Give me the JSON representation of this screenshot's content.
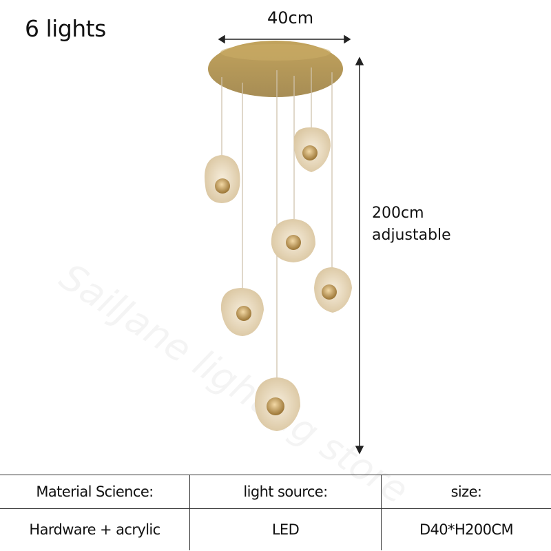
{
  "title": "6 lights",
  "dimensions": {
    "width": "40cm",
    "height_line1": "200cm",
    "height_line2": "adjustable"
  },
  "watermark": "SailJane lighting store",
  "colors": {
    "gold": "#b59a5a",
    "arrow": "#222222"
  },
  "specs": {
    "headers": [
      "Material Science:",
      "light source:",
      "size:"
    ],
    "values": [
      "Hardware + acrylic",
      "LED",
      "D40*H200CM"
    ]
  }
}
